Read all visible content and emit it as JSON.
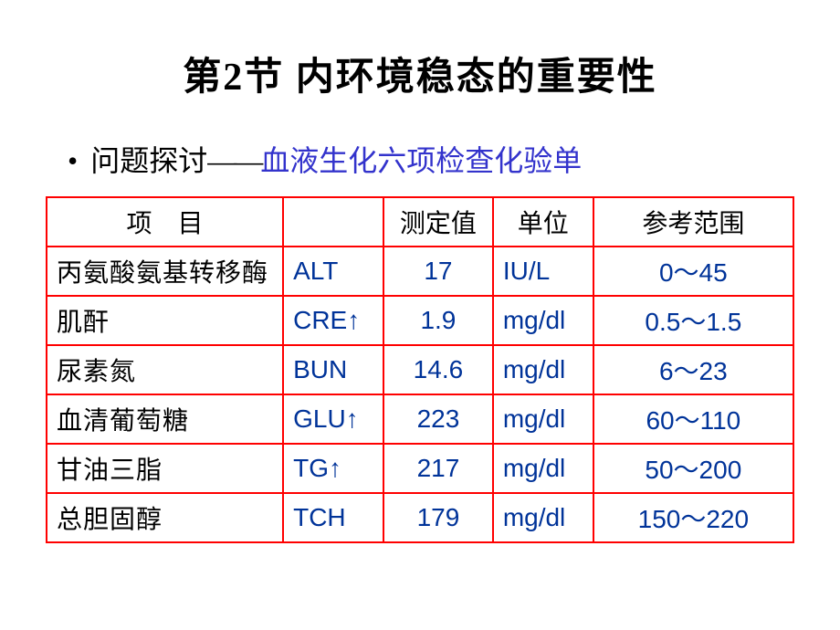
{
  "title": "第2节  内环境稳态的重要性",
  "subtitle": {
    "prefix": "问题探讨",
    "dash": "——",
    "highlight": "血液生化六项检查化验单"
  },
  "table": {
    "headers": {
      "name": "项　目",
      "abbr": "",
      "value": "测定值",
      "unit": "单位",
      "range": "参考范围"
    },
    "rows": [
      {
        "name": "丙氨酸氨基转移酶",
        "abbr": "ALT",
        "value": "17",
        "unit": "IU/L",
        "range": "0～45"
      },
      {
        "name": "肌酐",
        "abbr": "CRE↑",
        "value": "1.9",
        "unit": "mg/dl",
        "range": "0.5～1.5"
      },
      {
        "name": "尿素氮",
        "abbr": "BUN",
        "value": "14.6",
        "unit": "mg/dl",
        "range": "6～23"
      },
      {
        "name": "血清葡萄糖",
        "abbr": "GLU↑",
        "value": "223",
        "unit": "mg/dl",
        "range": "60～110"
      },
      {
        "name": "甘油三脂",
        "abbr": "TG↑",
        "value": "217",
        "unit": "mg/dl",
        "range": "50～200"
      },
      {
        "name": "总胆固醇",
        "abbr": "TCH",
        "value": "179",
        "unit": "mg/dl",
        "range": "150～220"
      }
    ]
  },
  "colors": {
    "border": "#ff0000",
    "data_text": "#003399",
    "subtitle_highlight": "#3333cc",
    "background": "#ffffff",
    "text": "#000000"
  },
  "fonts": {
    "title_size_pt": 32,
    "subtitle_size_pt": 24,
    "table_size_pt": 21
  }
}
